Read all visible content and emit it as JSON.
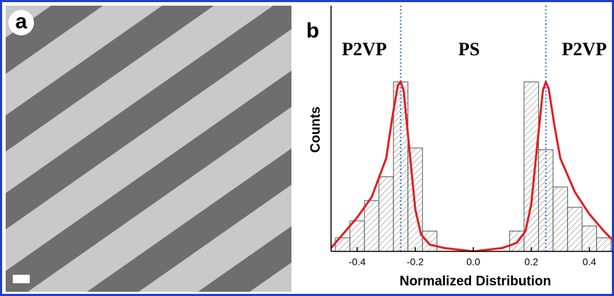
{
  "panel_a": {
    "label": "a"
  },
  "chart_data": {
    "type": "histogram",
    "label": "b",
    "xlabel": "Normalized Distribution",
    "ylabel": "Counts",
    "annotations": [
      "P2VP",
      "PS",
      "P2VP"
    ],
    "bins": [
      -0.475,
      -0.425,
      -0.375,
      -0.325,
      -0.275,
      -0.225,
      -0.175,
      -0.125,
      -0.075,
      -0.025,
      0.025,
      0.075,
      0.125,
      0.175,
      0.225,
      0.275,
      0.325,
      0.375,
      0.425,
      0.475,
      0.525
    ],
    "counts": [
      8,
      18,
      30,
      44,
      100,
      61,
      12,
      0,
      0,
      0,
      0,
      0,
      12,
      100,
      60,
      38,
      26,
      15,
      8,
      0
    ],
    "color": "#555555",
    "vlines": [
      -0.25,
      0.25
    ],
    "vline_color": "#3a78c8",
    "fit": {
      "color": "#e02020",
      "x": [
        -0.49,
        -0.45,
        -0.4,
        -0.35,
        -0.3,
        -0.28,
        -0.26,
        -0.25,
        -0.24,
        -0.22,
        -0.2,
        -0.18,
        -0.15,
        -0.1,
        -0.05,
        0,
        0.05,
        0.1,
        0.15,
        0.18,
        0.2,
        0.22,
        0.24,
        0.25,
        0.26,
        0.28,
        0.3,
        0.35,
        0.4,
        0.45,
        0.49
      ],
      "values": [
        2,
        10,
        20,
        32,
        55,
        78,
        98,
        100,
        95,
        60,
        25,
        10,
        4,
        2,
        1,
        0,
        1,
        2,
        5,
        12,
        28,
        62,
        95,
        100,
        96,
        74,
        55,
        35,
        22,
        12,
        5
      ]
    },
    "xlim": [
      -0.49,
      0.48
    ],
    "ylim": [
      0,
      145
    ],
    "xticks": [
      -0.4,
      -0.2,
      {
        "value": 0,
        "label": "0.0"
      },
      0.2,
      0.4
    ]
  }
}
